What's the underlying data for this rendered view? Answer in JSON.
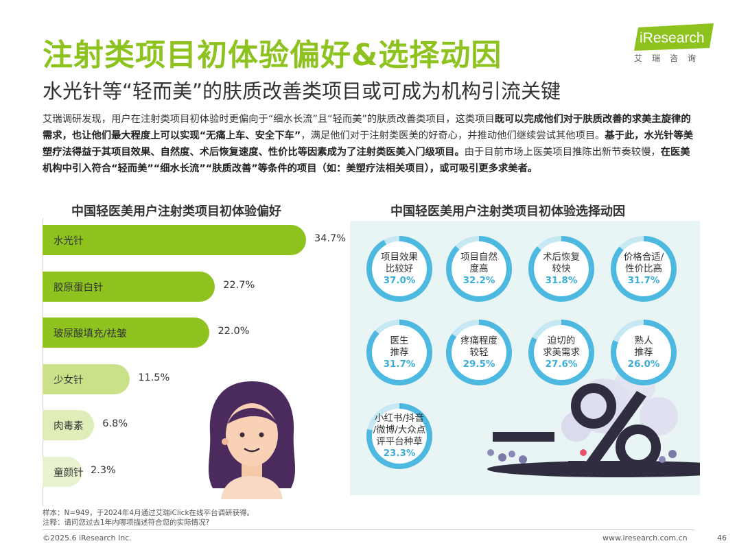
{
  "header": {
    "title": "注射类项目初体验偏好&选择动因",
    "subtitle": "水光针等“轻而美”的肤质改善类项目或可成为机构引流关键",
    "logo_text": "iResearch",
    "logo_sub": "艾瑞咨询"
  },
  "body": {
    "segments": [
      {
        "text": "艾瑞调研发现，用户在注射类项目初体验时更偏向于“细水长流”且“轻而美”的肤质改善类项目，这类项目",
        "bold": false
      },
      {
        "text": "既可以完成他们对于肤质改善的求美主旋律的需求，也让他们最大程度上可以实现“无痛上车、安全下车”",
        "bold": true
      },
      {
        "text": "，满足他们对于注射类医美的好奇心，并推动他们继续尝试其他项目。",
        "bold": false
      },
      {
        "text": "基于此，水光针等美塑疗法得益于其项目效果、自然度、术后恢复速度、性价比等因素成为了注射类医美入门级项目。",
        "bold": true
      },
      {
        "text": "由于目前市场上医美项目推陈出新节奏较慢，",
        "bold": false
      },
      {
        "text": "在医美机构中引入符合“轻而美”“细水长流”“肤质改善”等条件的项目（如：美塑疗法相关项目），或可吸引更多求美者。",
        "bold": true
      }
    ]
  },
  "chart_data": [
    {
      "type": "bar",
      "title": "中国轻医美用户注射类项目初体验偏好",
      "orientation": "horizontal",
      "categories": [
        "水光针",
        "胶原蛋白针",
        "玻尿酸填充/祛皱",
        "少女针",
        "肉毒素",
        "童颜针"
      ],
      "values": [
        34.7,
        22.7,
        22.0,
        11.5,
        6.8,
        2.3
      ],
      "value_labels": [
        "34.7%",
        "22.7%",
        "22.0%",
        "11.5%",
        "6.8%",
        "2.3%"
      ],
      "unit": "%",
      "colors": [
        "#8dc21f",
        "#8dc21f",
        "#8dc21f",
        "#c9e28a",
        "#dfeeb8",
        "#e9f3d0"
      ]
    },
    {
      "type": "pie",
      "title": "中国轻医美用户注射类项目初体验选择动因",
      "items": [
        {
          "label1": "项目效果",
          "label2": "比较好",
          "label3": "",
          "value": 37.0,
          "value_label": "37.0%"
        },
        {
          "label1": "项目自然",
          "label2": "度高",
          "label3": "",
          "value": 32.2,
          "value_label": "32.2%"
        },
        {
          "label1": "术后恢复",
          "label2": "较快",
          "label3": "",
          "value": 31.8,
          "value_label": "31.8%"
        },
        {
          "label1": "价格合适/",
          "label2": "性价比高",
          "label3": "",
          "value": 31.7,
          "value_label": "31.7%"
        },
        {
          "label1": "医生",
          "label2": "推荐",
          "label3": "",
          "value": 31.7,
          "value_label": "31.7%"
        },
        {
          "label1": "疼痛程度",
          "label2": "较轻",
          "label3": "",
          "value": 29.5,
          "value_label": "29.5%"
        },
        {
          "label1": "迫切的",
          "label2": "求美需求",
          "label3": "",
          "value": 27.6,
          "value_label": "27.6%"
        },
        {
          "label1": "熟人",
          "label2": "推荐",
          "label3": "",
          "value": 26.0,
          "value_label": "26.0%"
        },
        {
          "label1": "小红书/抖音",
          "label2": "/微博/大众点",
          "label3": "评平台种草",
          "value": 23.3,
          "value_label": "23.3%"
        }
      ],
      "ring_color": "#4db8e0",
      "ring_track": "#ffffff"
    }
  ],
  "footnotes": {
    "sample": "样本：N=949，于2024年4月通过艾瑞iClick在线平台调研获得。",
    "note": "注释：请问您过去1年内哪项描述符合您的实际情况?"
  },
  "footer": {
    "copyright": "©2025.6 iResearch Inc.",
    "website": "www.iresearch.com.cn",
    "page": "46"
  }
}
